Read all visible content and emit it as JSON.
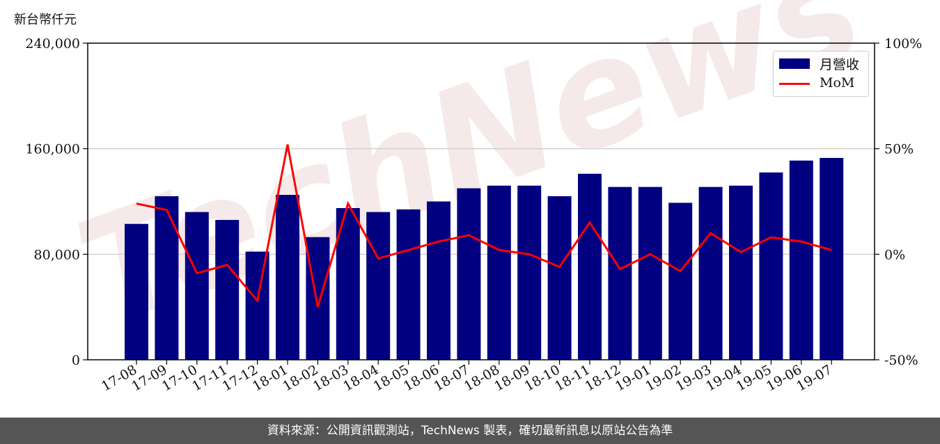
{
  "unit_label": "新台幣仟元",
  "footer_text": "資料來源：公開資訊觀測站，TechNews 製表，確切最新訊息以原站公告為準",
  "colors": {
    "bar": "#000080",
    "line": "#ff0000",
    "grid": "#d0d0d0",
    "watermark": "#f2e0e0",
    "footer_bg": "#555555"
  },
  "legend": {
    "bar_label": "月營收",
    "line_label": "MoM"
  },
  "chart_data": {
    "type": "bar",
    "categories": [
      "17-08",
      "17-09",
      "17-10",
      "17-11",
      "17-12",
      "18-01",
      "18-02",
      "18-03",
      "18-04",
      "18-05",
      "18-06",
      "18-07",
      "18-08",
      "18-09",
      "18-10",
      "18-11",
      "18-12",
      "19-01",
      "19-02",
      "19-03",
      "19-04",
      "19-05",
      "19-06",
      "19-07"
    ],
    "series": [
      {
        "name": "月營收",
        "type": "bar",
        "axis": "left",
        "values": [
          103000,
          124000,
          112000,
          106000,
          82000,
          125000,
          93000,
          115000,
          112000,
          114000,
          120000,
          130000,
          132000,
          132000,
          124000,
          141000,
          131000,
          131000,
          119000,
          131000,
          132000,
          142000,
          151000,
          153000
        ]
      },
      {
        "name": "MoM",
        "type": "line",
        "axis": "right",
        "values": [
          24,
          21,
          -9,
          -5,
          -22,
          52,
          -25,
          24,
          -2,
          2,
          6,
          9,
          2,
          0,
          -6,
          15,
          -7,
          0,
          -8,
          10,
          1,
          8,
          6,
          2
        ]
      }
    ],
    "y_left": {
      "min": 0,
      "max": 240000,
      "ticks": [
        0,
        80000,
        160000,
        240000
      ],
      "tick_labels": [
        "0",
        "80,000",
        "160,000",
        "240,000"
      ]
    },
    "y_right": {
      "min": -50,
      "max": 100,
      "ticks": [
        -50,
        0,
        50,
        100
      ],
      "tick_labels": [
        "-50%",
        "0%",
        "50%",
        "100%"
      ]
    },
    "grid": "horizontal",
    "legend_position": "top-right"
  }
}
